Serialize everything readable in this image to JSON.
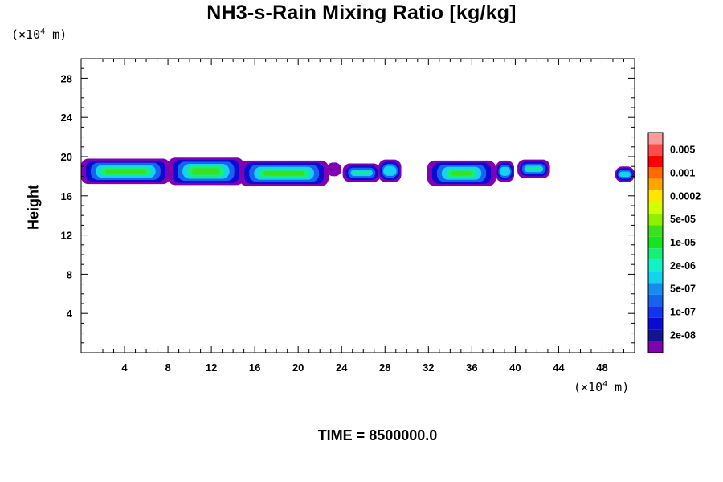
{
  "title": "NH3-s-Rain Mixing Ratio [kg/kg]",
  "y_unit": {
    "prefix": "(×10",
    "exp": "4",
    "suffix": " m)"
  },
  "x_unit": {
    "prefix": "(×10",
    "exp": "4",
    "suffix": " m)"
  },
  "time_label": "TIME = 8500000.0",
  "chart_data": {
    "type": "heatmap",
    "title": "NH3-s-Rain Mixing Ratio [kg/kg]",
    "xlabel": "",
    "ylabel": "Height",
    "x_unit": "×10^4 m",
    "y_unit": "×10^4 m",
    "xlim": [
      0,
      51
    ],
    "ylim": [
      0,
      30
    ],
    "x_ticks": [
      4,
      8,
      12,
      16,
      20,
      24,
      28,
      32,
      36,
      40,
      44,
      48
    ],
    "y_ticks": [
      4,
      8,
      12,
      16,
      20,
      24,
      28
    ],
    "colorbar": {
      "labels": [
        "0.005",
        "0.001",
        "0.0002",
        "5e-05",
        "1e-05",
        "2e-06",
        "5e-07",
        "1e-07",
        "2e-08"
      ],
      "colors_top_to_bottom": [
        "#ff9a9a",
        "#ff4a4a",
        "#ff0000",
        "#ff6a00",
        "#ffa500",
        "#ffe600",
        "#d4ff00",
        "#90f000",
        "#3ce01e",
        "#14e61e",
        "#14f078",
        "#14f0c8",
        "#14d2f0",
        "#148cf0",
        "#1464f0",
        "#1432f0",
        "#0a0ad2",
        "#14148c",
        "#8200b4"
      ]
    },
    "regions": [
      {
        "x": [
          0.0,
          8.2
        ],
        "y": [
          17.2,
          19.8
        ],
        "peak": "1e-05"
      },
      {
        "x": [
          8.0,
          15.0
        ],
        "y": [
          17.1,
          19.9
        ],
        "peak": "1e-05"
      },
      {
        "x": [
          14.6,
          22.8
        ],
        "y": [
          17.0,
          19.6
        ],
        "peak": "1e-05"
      },
      {
        "x": [
          22.6,
          24.0
        ],
        "y": [
          18.0,
          19.4
        ],
        "peak": "2e-08"
      },
      {
        "x": [
          24.1,
          27.6
        ],
        "y": [
          17.4,
          19.3
        ],
        "peak": "1e-05"
      },
      {
        "x": [
          27.4,
          29.5
        ],
        "y": [
          17.4,
          19.7
        ],
        "peak": "2e-06"
      },
      {
        "x": [
          31.9,
          38.2
        ],
        "y": [
          17.0,
          19.6
        ],
        "peak": "1e-05"
      },
      {
        "x": [
          38.2,
          39.9
        ],
        "y": [
          17.4,
          19.6
        ],
        "peak": "2e-06"
      },
      {
        "x": [
          40.2,
          43.2
        ],
        "y": [
          17.8,
          19.7
        ],
        "peak": "1e-05"
      },
      {
        "x": [
          49.2,
          51.0
        ],
        "y": [
          17.4,
          19.0
        ],
        "peak": "2e-06"
      }
    ]
  }
}
